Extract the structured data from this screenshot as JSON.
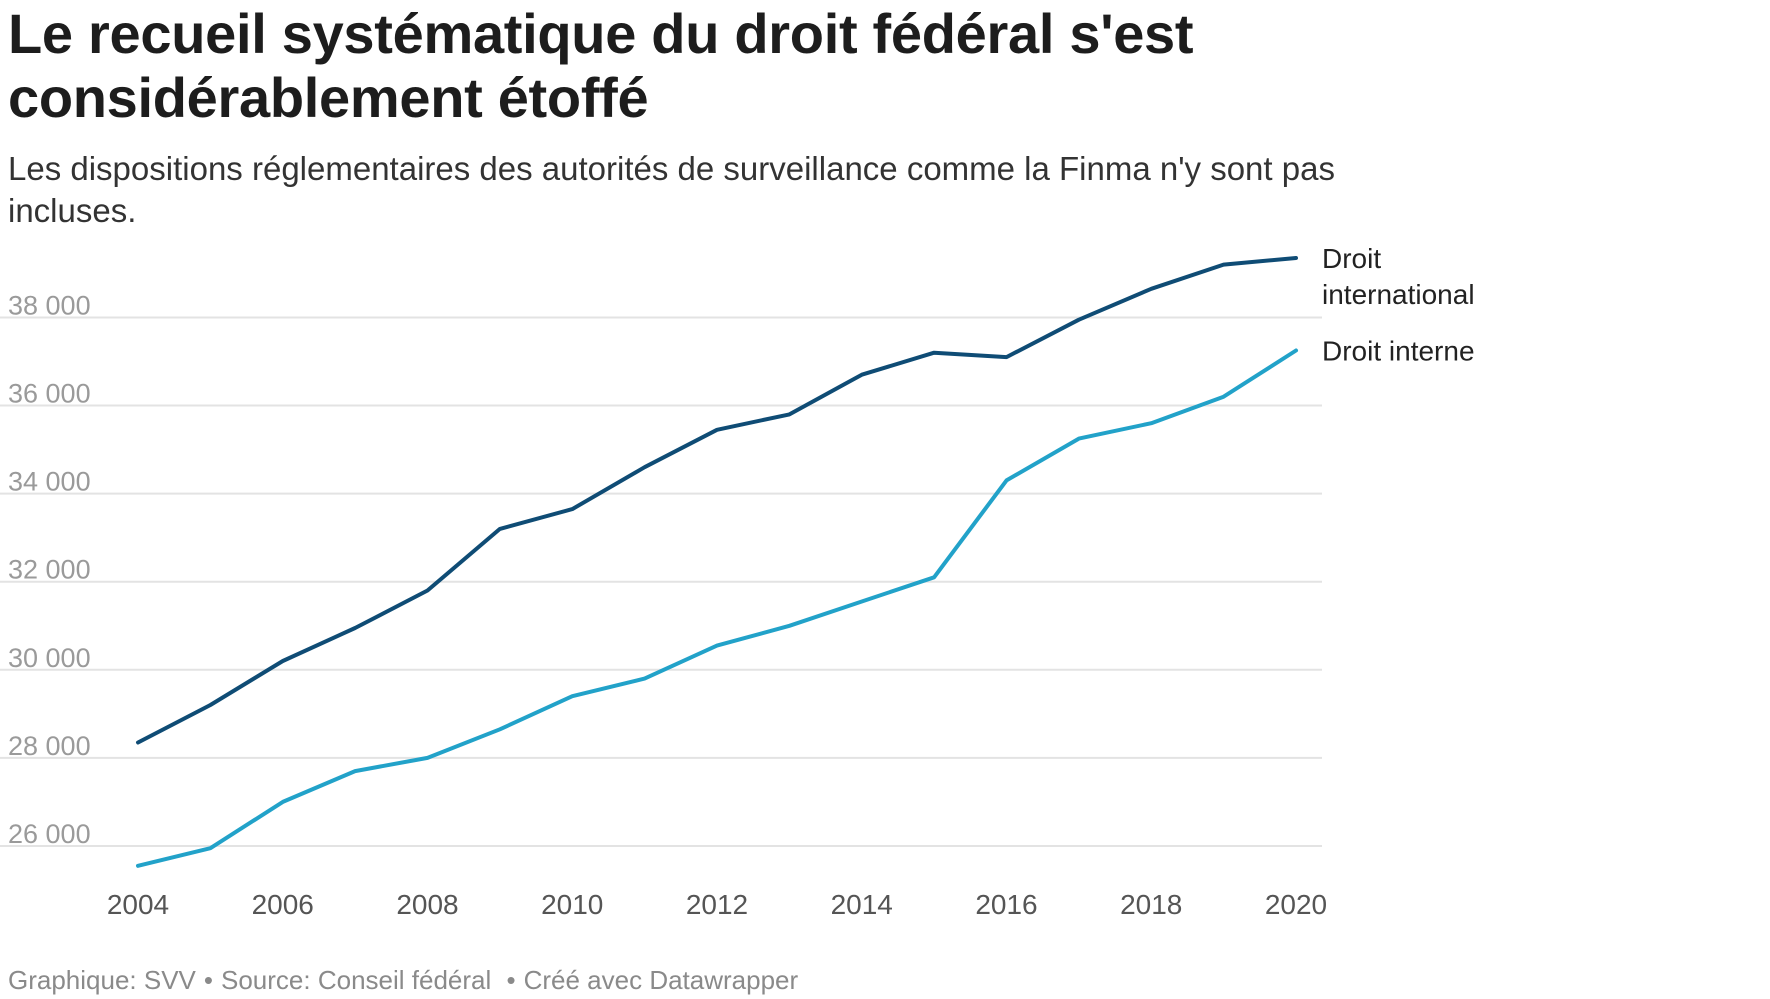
{
  "title": "Le recueil systématique du droit fédéral s'est considérablement étoffé",
  "subtitle": "Les dispositions réglementaires des autorités de surveillance comme la Finma n'y sont pas incluses.",
  "footer": {
    "graphic": "Graphique: SVV",
    "source": "Source: Conseil fédéral",
    "created": "Créé avec Datawrapper"
  },
  "colors": {
    "international": "#0f4c75",
    "interne": "#22a2c9",
    "grid": "#e3e3e3"
  },
  "chart_data": {
    "type": "line",
    "title": "Le recueil systématique du droit fédéral s'est considérablement étoffé",
    "xlabel": "",
    "ylabel": "",
    "x": [
      2004,
      2005,
      2006,
      2007,
      2008,
      2009,
      2010,
      2011,
      2012,
      2013,
      2014,
      2015,
      2016,
      2017,
      2018,
      2019,
      2020
    ],
    "xticks": [
      2004,
      2006,
      2008,
      2010,
      2012,
      2014,
      2016,
      2018,
      2020
    ],
    "xtick_labels": [
      "2004",
      "2006",
      "2008",
      "2010",
      "2012",
      "2014",
      "2016",
      "2018",
      "2020"
    ],
    "yticks": [
      26000,
      28000,
      30000,
      32000,
      34000,
      36000,
      38000
    ],
    "ytick_labels": [
      "26 000",
      "28 000",
      "30 000",
      "32 000",
      "34 000",
      "36 000",
      "38 000"
    ],
    "ylim": [
      25500,
      39600
    ],
    "xlim": [
      2004,
      2020
    ],
    "grid": true,
    "legend": "inline-right",
    "series": [
      {
        "name": "Droit international",
        "label_lines": [
          "Droit",
          "international"
        ],
        "color": "#0f4c75",
        "values": [
          28350,
          29200,
          30200,
          30950,
          31800,
          33200,
          33650,
          34600,
          35450,
          35800,
          36700,
          37200,
          37100,
          37950,
          38650,
          39200,
          39350
        ]
      },
      {
        "name": "Droit interne",
        "label_lines": [
          "Droit interne"
        ],
        "color": "#22a2c9",
        "values": [
          25550,
          25950,
          27000,
          27700,
          28000,
          28650,
          29400,
          29800,
          30550,
          31000,
          31550,
          32100,
          34300,
          35250,
          35600,
          36200,
          37250
        ]
      }
    ]
  }
}
